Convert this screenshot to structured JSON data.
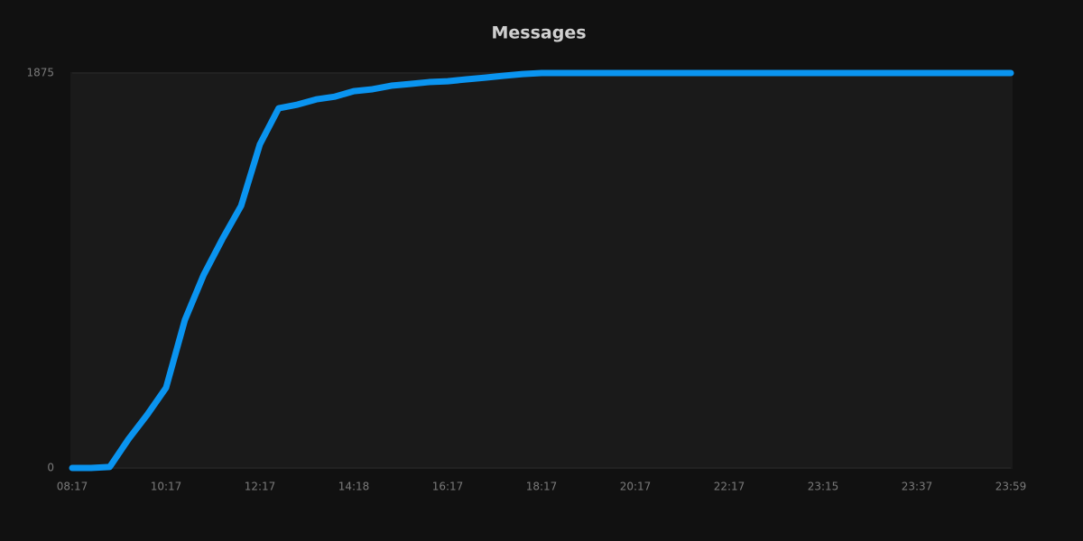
{
  "chart_data": {
    "type": "line",
    "title": "Messages",
    "categories": [
      "08:17",
      null,
      null,
      null,
      null,
      "10:17",
      null,
      null,
      null,
      null,
      "12:17",
      null,
      null,
      null,
      null,
      "14:18",
      null,
      null,
      null,
      null,
      "16:17",
      null,
      null,
      null,
      null,
      "18:17",
      null,
      null,
      null,
      null,
      "20:17",
      null,
      null,
      null,
      null,
      "22:17",
      null,
      null,
      null,
      null,
      "23:15",
      null,
      null,
      null,
      null,
      "23:37",
      null,
      null,
      null,
      null,
      "23:59"
    ],
    "series": [
      {
        "name": "Messages",
        "color": "#0a94f0",
        "values": [
          0,
          0,
          5,
          137,
          253,
          381,
          702,
          916,
          1087,
          1245,
          1537,
          1708,
          1725,
          1750,
          1763,
          1789,
          1798,
          1815,
          1823,
          1832,
          1836,
          1845,
          1853,
          1862,
          1870,
          1875,
          1875,
          1875,
          1875,
          1875,
          1875,
          1875,
          1875,
          1875,
          1875,
          1875,
          1875,
          1875,
          1875,
          1875,
          1875,
          1875,
          1875,
          1875,
          1875,
          1875,
          1875,
          1875,
          1875,
          1875,
          1875
        ]
      }
    ],
    "ylim": [
      0,
      1875
    ],
    "yticks": [
      0,
      1875
    ],
    "grid": true
  }
}
